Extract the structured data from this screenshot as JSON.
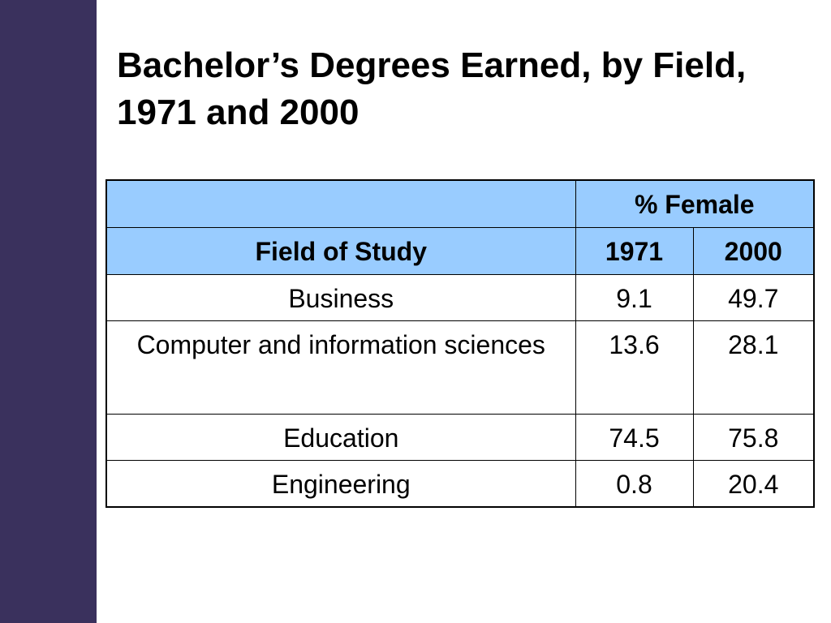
{
  "title": "Bachelor’s Degrees Earned, by Field, 1971 and 2000",
  "colors": {
    "sidebar": "#3a315d",
    "header_fill": "#99ccff"
  },
  "table": {
    "group_header": "% Female",
    "columns": [
      "Field of Study",
      "1971",
      "2000"
    ],
    "rows": [
      {
        "field": "Business",
        "y1971": "9.1",
        "y2000": "49.7"
      },
      {
        "field": "Computer and information sciences",
        "y1971": "13.6",
        "y2000": "28.1"
      },
      {
        "field": "Education",
        "y1971": "74.5",
        "y2000": "75.8"
      },
      {
        "field": "Engineering",
        "y1971": "0.8",
        "y2000": "20.4"
      }
    ]
  }
}
